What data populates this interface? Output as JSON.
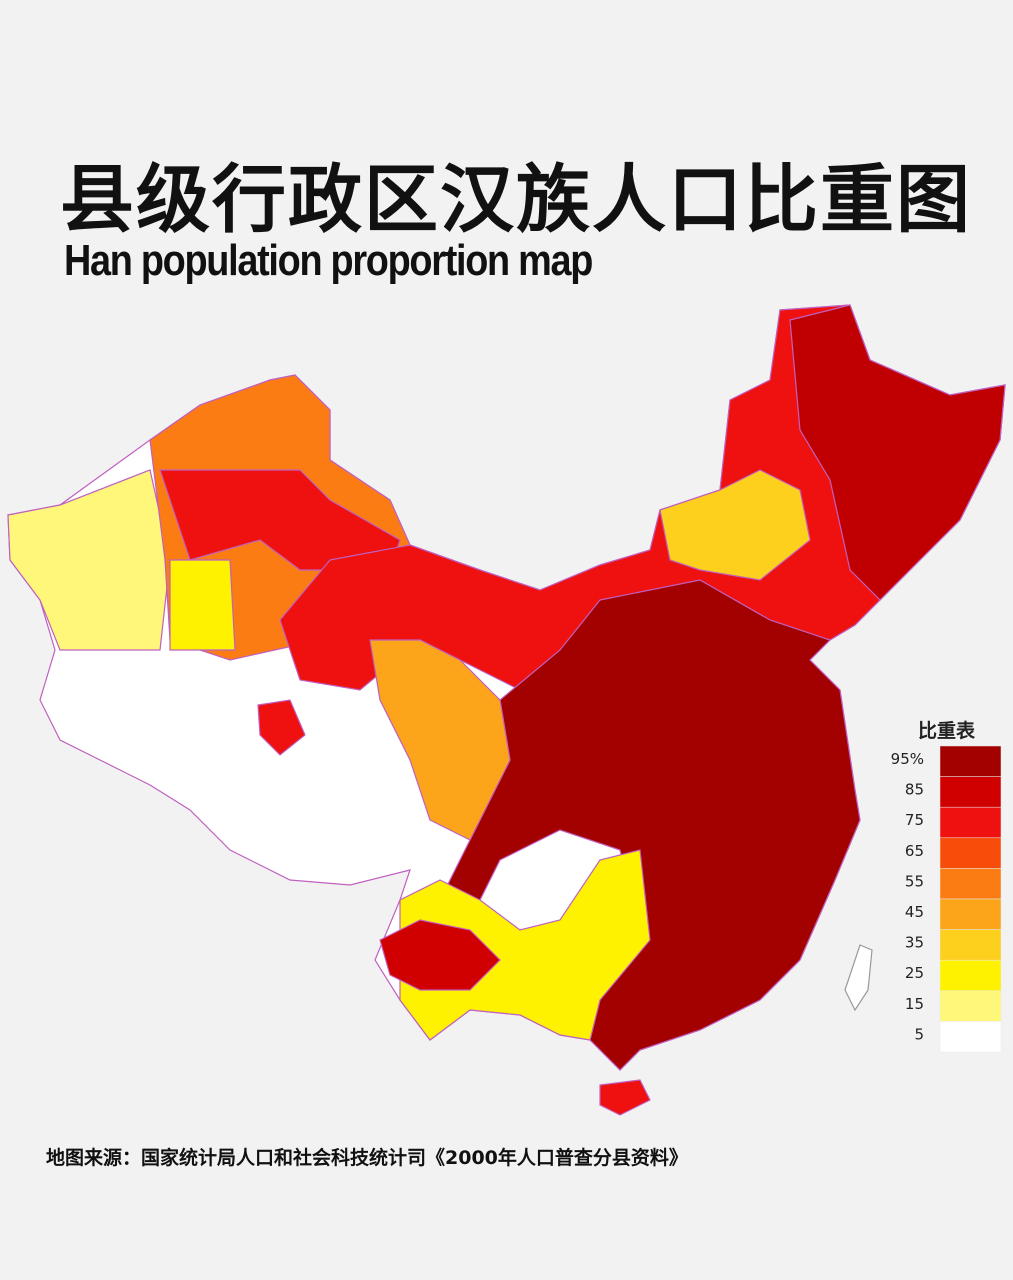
{
  "header": {
    "title": "县级行政区汉族人口比重图",
    "subtitle": "Han population proportion map"
  },
  "legend": {
    "title": "比重表",
    "items": [
      {
        "label": "95%",
        "color": "#a30000"
      },
      {
        "label": "85",
        "color": "#d00000"
      },
      {
        "label": "75",
        "color": "#ef1010"
      },
      {
        "label": "65",
        "color": "#f84c0a"
      },
      {
        "label": "55",
        "color": "#fb7c12"
      },
      {
        "label": "45",
        "color": "#fca41a"
      },
      {
        "label": "35",
        "color": "#fdd01e"
      },
      {
        "label": "25",
        "color": "#fff200"
      },
      {
        "label": "15",
        "color": "#fff77a"
      },
      {
        "label": "5",
        "color": "#ffffff"
      }
    ]
  },
  "footer": {
    "source": "地图来源：国家统计局人口和社会科技统计司《2000年人口普查分县资料》"
  }
}
